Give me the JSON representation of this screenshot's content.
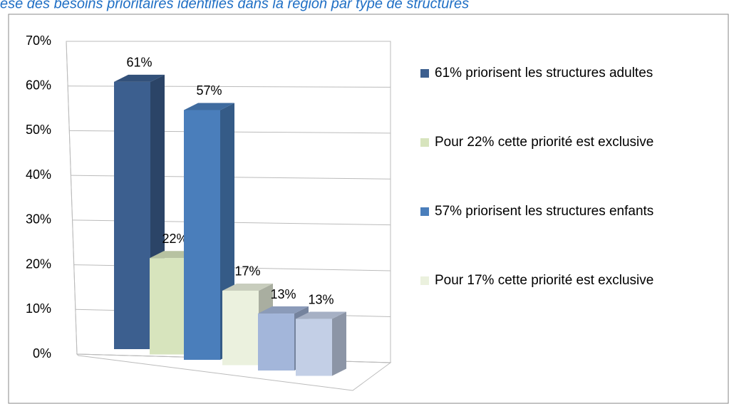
{
  "chart_data": {
    "type": "bar3d",
    "title": "ese des besoins prioritaires identifiés dans la région par type de structures",
    "values": [
      61,
      22,
      57,
      17,
      13,
      13
    ],
    "value_labels": [
      "61%",
      "22%",
      "57%",
      "17%",
      "13%",
      "13%"
    ],
    "colors": [
      "#3c5f8f",
      "#d7e4bd",
      "#4a7ebb",
      "#ebf1de",
      "#a3b6da",
      "#c3cfe6"
    ],
    "legend": [
      "61% priorisent les structures adultes",
      "Pour 22% cette priorité est exclusive",
      "57% priorisent les structures enfants",
      "Pour 17% cette priorité est exclusive"
    ],
    "ylim": [
      0,
      70
    ],
    "yticks": [
      {
        "value": 0,
        "label": "0%"
      },
      {
        "value": 10,
        "label": "10%"
      },
      {
        "value": 20,
        "label": "20%"
      },
      {
        "value": 30,
        "label": "30%"
      },
      {
        "value": 40,
        "label": "40%"
      },
      {
        "value": 50,
        "label": "50%"
      },
      {
        "value": 60,
        "label": "60%"
      },
      {
        "value": 70,
        "label": "70%"
      }
    ],
    "grid": true
  }
}
